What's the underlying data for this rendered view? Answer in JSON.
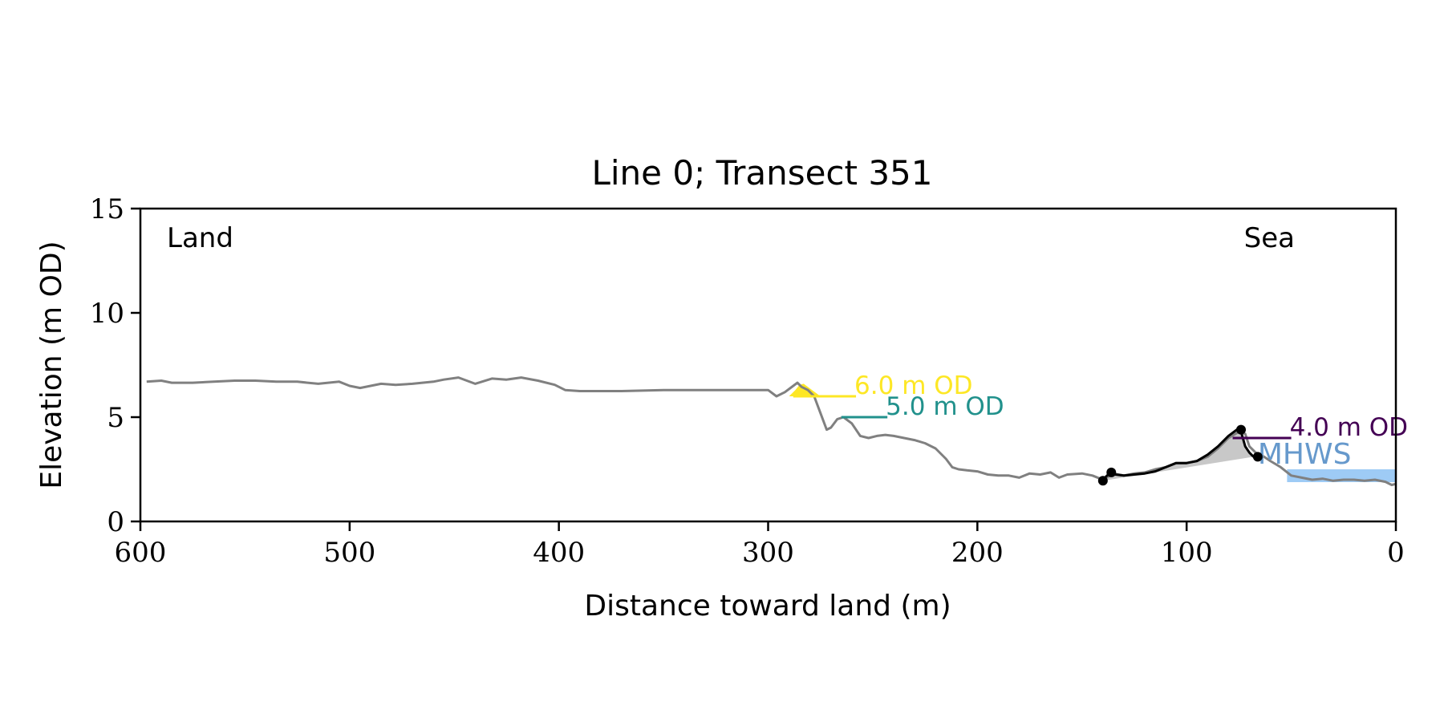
{
  "chart_data": {
    "type": "line",
    "title": "Line 0; Transect 351",
    "xlabel": "Distance toward land (m)",
    "ylabel": "Elevation (m OD)",
    "xlim": [
      600,
      0
    ],
    "ylim": [
      0,
      15
    ],
    "xticks": [
      600,
      500,
      400,
      300,
      200,
      100,
      0
    ],
    "yticks": [
      0,
      5,
      10,
      15
    ],
    "grid": false,
    "corner_labels": {
      "left": "Land",
      "right": "Sea"
    },
    "colors": {
      "profile": "#808080",
      "dune": "#000000",
      "dune_fill": "#c8c8c8",
      "level_6": "#fde725",
      "level_5": "#21918c",
      "level_4": "#440154",
      "mhws_text": "#6699cc",
      "mhws_band": "#9ecbf5"
    },
    "profile": {
      "name": "",
      "x": [
        597,
        590,
        585,
        575,
        565,
        555,
        545,
        535,
        530,
        525,
        515,
        505,
        500,
        495,
        485,
        478,
        470,
        460,
        455,
        448,
        440,
        432,
        425,
        418,
        410,
        402,
        397,
        390,
        370,
        350,
        330,
        310,
        300,
        296,
        292,
        288,
        286,
        284,
        281,
        278,
        275,
        272,
        270,
        267,
        264,
        260,
        256,
        252,
        248,
        244,
        240,
        235,
        230,
        225,
        220,
        215,
        212,
        209,
        205,
        200,
        195,
        190,
        185,
        180,
        175,
        170,
        165,
        161,
        157,
        150,
        145,
        140,
        135,
        130,
        125,
        120,
        115,
        110,
        105,
        100,
        95,
        90,
        85,
        80,
        75,
        72,
        70,
        67,
        63,
        60,
        55,
        50,
        45,
        40,
        35,
        30,
        25,
        20,
        15,
        10,
        5,
        2,
        0
      ],
      "y": [
        6.7,
        6.75,
        6.65,
        6.65,
        6.7,
        6.75,
        6.75,
        6.7,
        6.7,
        6.7,
        6.6,
        6.7,
        6.5,
        6.4,
        6.6,
        6.55,
        6.6,
        6.7,
        6.8,
        6.9,
        6.6,
        6.85,
        6.8,
        6.9,
        6.75,
        6.55,
        6.3,
        6.25,
        6.25,
        6.3,
        6.3,
        6.3,
        6.3,
        6.0,
        6.2,
        6.5,
        6.65,
        6.45,
        6.3,
        6.0,
        5.2,
        4.4,
        4.5,
        4.9,
        5.0,
        4.7,
        4.1,
        4.0,
        4.1,
        4.15,
        4.1,
        4.0,
        3.9,
        3.75,
        3.5,
        3.0,
        2.6,
        2.5,
        2.45,
        2.4,
        2.25,
        2.2,
        2.2,
        2.1,
        2.3,
        2.25,
        2.35,
        2.1,
        2.25,
        2.3,
        2.2,
        2.0,
        2.3,
        2.2,
        2.3,
        2.35,
        2.5,
        2.6,
        2.8,
        2.8,
        2.9,
        3.1,
        3.5,
        4.0,
        4.3,
        4.2,
        3.6,
        3.3,
        3.1,
        2.9,
        2.6,
        2.2,
        2.1,
        2.0,
        2.05,
        1.95,
        2.0,
        2.0,
        1.95,
        2.0,
        1.9,
        1.75,
        1.8
      ]
    },
    "dune": {
      "x": [
        140,
        138,
        136,
        134,
        130,
        125,
        120,
        115,
        110,
        105,
        100,
        95,
        90,
        85,
        80,
        76,
        74,
        72,
        70,
        68
      ],
      "y": [
        2.0,
        2.2,
        2.35,
        2.25,
        2.2,
        2.25,
        2.3,
        2.4,
        2.6,
        2.8,
        2.8,
        2.9,
        3.2,
        3.6,
        4.1,
        4.4,
        4.3,
        3.6,
        3.3,
        3.1
      ]
    },
    "dune_points": [
      {
        "x": 140,
        "y": 1.95
      },
      {
        "x": 136,
        "y": 2.35
      },
      {
        "x": 74,
        "y": 4.4
      },
      {
        "x": 66,
        "y": 3.1
      }
    ],
    "dune_toe_line": {
      "x": [
        140,
        68
      ],
      "y": [
        1.95,
        3.1
      ]
    },
    "levels": [
      {
        "label": "6.0 m OD",
        "y": 6.0,
        "x_start": 288,
        "x_end": 258,
        "color_key": "level_6"
      },
      {
        "label": "5.0 m OD",
        "y": 5.0,
        "x_start": 265,
        "x_end": 243,
        "color_key": "level_5"
      },
      {
        "label": "4.0 m OD",
        "y": 4.0,
        "x_start": 78,
        "x_end": 50,
        "color_key": "level_4"
      }
    ],
    "level6_fill": {
      "x": [
        290,
        287,
        285,
        283,
        279,
        275
      ],
      "y": [
        6.0,
        6.3,
        6.55,
        6.6,
        6.3,
        6.0
      ]
    },
    "mhws": {
      "label": "MHWS",
      "y": 2.5,
      "x_start": 52,
      "x_end": 0
    }
  }
}
